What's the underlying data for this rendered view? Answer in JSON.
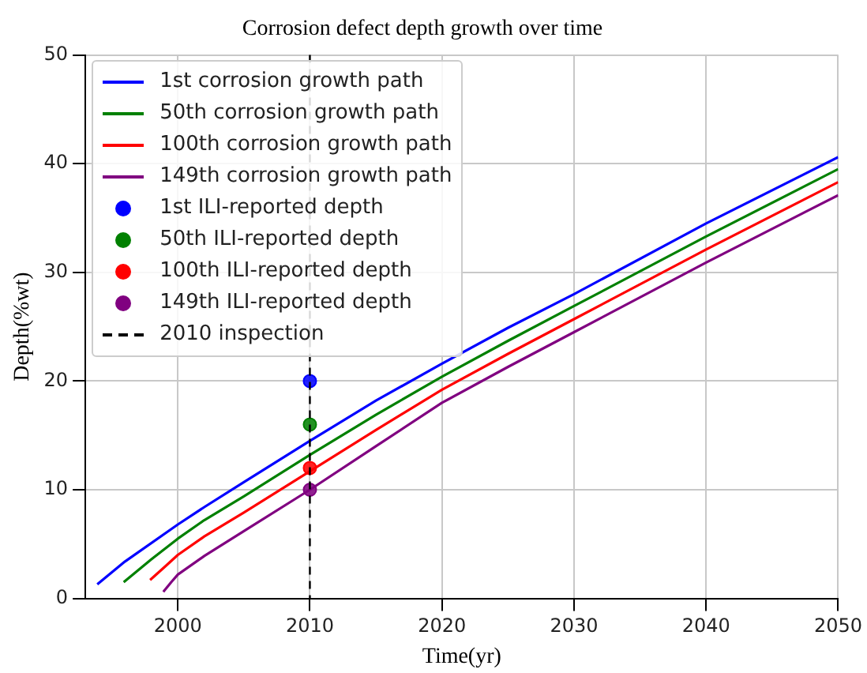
{
  "chart_data": {
    "type": "line",
    "title": "Corrosion defect depth growth over time",
    "xlabel": "Time(yr)",
    "ylabel": "Depth(%wt)",
    "xlim": [
      1993,
      2050
    ],
    "xticks": [
      2000,
      2010,
      2020,
      2030,
      2040,
      2050
    ],
    "ylim": [
      0,
      50
    ],
    "yticks": [
      0,
      10,
      20,
      30,
      40,
      50
    ],
    "grid": true,
    "legend": "top left",
    "marker": "none",
    "line_style": "solid",
    "series": [
      {
        "name": "1st corrosion growth path",
        "color": "#0000ff",
        "x": [
          1993.9,
          1996,
          2000,
          2002,
          2005,
          2010,
          2015,
          2020,
          2025,
          2030,
          2040,
          2050
        ],
        "values": [
          1.3,
          3.4,
          6.8,
          8.4,
          10.7,
          14.5,
          18.2,
          21.6,
          24.9,
          28.0,
          34.5,
          40.6
        ]
      },
      {
        "name": "50th corrosion growth path",
        "color": "#008000",
        "x": [
          1995.9,
          1998,
          2000,
          2002,
          2005,
          2010,
          2015,
          2020,
          2025,
          2030,
          2040,
          2050
        ],
        "values": [
          1.5,
          3.6,
          5.5,
          7.2,
          9.4,
          13.2,
          16.9,
          20.4,
          23.7,
          26.9,
          33.3,
          39.5
        ]
      },
      {
        "name": "100th corrosion growth path",
        "color": "#ff0000",
        "x": [
          1997.9,
          1999,
          2000,
          2002,
          2005,
          2010,
          2015,
          2020,
          2025,
          2030,
          2040,
          2050
        ],
        "values": [
          1.7,
          2.9,
          4.0,
          5.7,
          7.9,
          11.7,
          15.5,
          19.2,
          22.5,
          25.7,
          32.1,
          38.3
        ]
      },
      {
        "name": "149th corrosion growth path",
        "color": "#800080",
        "x": [
          1998.9,
          1999.5,
          2000,
          2002,
          2005,
          2010,
          2015,
          2020,
          2025,
          2030,
          2040,
          2050
        ],
        "values": [
          0.6,
          1.5,
          2.2,
          3.9,
          6.2,
          10.0,
          14.0,
          18.0,
          21.3,
          24.5,
          30.9,
          37.1
        ]
      },
      {
        "name": "1st ILI-reported depth",
        "type": "scatter",
        "marker": "circle",
        "color": "#0000ff",
        "x": [
          2010
        ],
        "values": [
          20
        ]
      },
      {
        "name": "50th ILI-reported depth",
        "type": "scatter",
        "marker": "circle",
        "color": "#008000",
        "x": [
          2010
        ],
        "values": [
          16
        ]
      },
      {
        "name": "100th ILI-reported depth",
        "type": "scatter",
        "marker": "circle",
        "color": "#ff0000",
        "x": [
          2010
        ],
        "values": [
          12
        ]
      },
      {
        "name": "149th ILI-reported depth",
        "type": "scatter",
        "marker": "circle",
        "color": "#800080",
        "x": [
          2010
        ],
        "values": [
          10
        ]
      }
    ],
    "ref_lines": [
      {
        "axis": "x",
        "value": 2010,
        "label": "2010 inspection",
        "color": "#000000",
        "line_style": "dashed"
      }
    ]
  }
}
